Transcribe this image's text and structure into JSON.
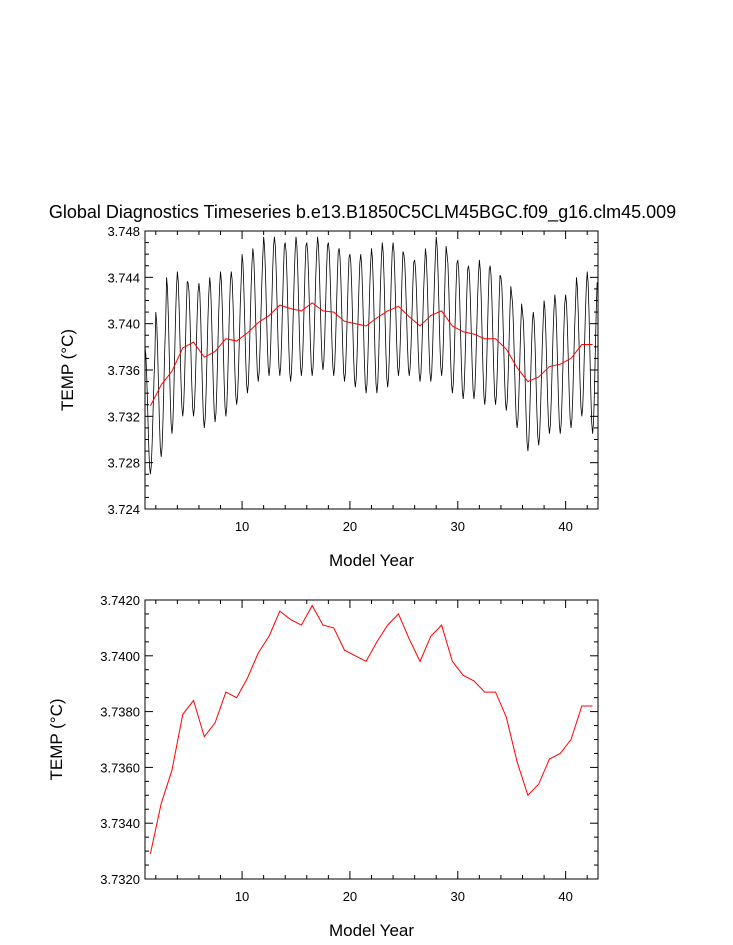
{
  "chart_data": [
    {
      "type": "line",
      "title": "Global Diagnostics Timeseries b.e13.B1850C5CLM45BGC.f09_g16.clm45.009",
      "xlabel": "Model Year",
      "ylabel": "TEMP (°C)",
      "xlim": [
        1,
        43
      ],
      "ylim": [
        3.724,
        3.748
      ],
      "xticks": [
        10,
        20,
        30,
        40
      ],
      "yticks": [
        3.724,
        3.728,
        3.732,
        3.736,
        3.74,
        3.744,
        3.748
      ],
      "ytick_labels": [
        "3.724",
        "3.728",
        "3.732",
        "3.736",
        "3.740",
        "3.744",
        "3.748"
      ],
      "grid": false,
      "series": [
        {
          "kind": "monthly",
          "color": "#000000",
          "x_start": 1,
          "x_step": 0.08333,
          "annual_peaks": [
            3.738,
            3.741,
            3.744,
            3.7445,
            3.7435,
            3.7435,
            3.744,
            3.7445,
            3.7445,
            3.746,
            3.7465,
            3.7475,
            3.7475,
            3.747,
            3.7475,
            3.747,
            3.7475,
            3.747,
            3.7465,
            3.746,
            3.746,
            3.7465,
            3.747,
            3.747,
            3.746,
            3.7455,
            3.7465,
            3.7475,
            3.746,
            3.7455,
            3.745,
            3.7455,
            3.745,
            3.744,
            3.7425,
            3.741,
            3.741,
            3.742,
            3.7425,
            3.7425,
            3.744,
            3.7445
          ],
          "annual_troughs": [
            3.727,
            3.7285,
            3.7305,
            3.732,
            3.732,
            3.731,
            3.7315,
            3.732,
            3.733,
            3.734,
            3.735,
            3.7355,
            3.7355,
            3.735,
            3.7355,
            3.7355,
            3.736,
            3.7355,
            3.735,
            3.7345,
            3.734,
            3.734,
            3.7345,
            3.7355,
            3.7355,
            3.735,
            3.735,
            3.7355,
            3.734,
            3.7335,
            3.7335,
            3.733,
            3.733,
            3.7325,
            3.731,
            3.729,
            3.7295,
            3.7305,
            3.7305,
            3.731,
            3.732,
            3.7305
          ]
        },
        {
          "kind": "annual",
          "color": "#ff0000",
          "x": [
            1.5,
            2.5,
            3.5,
            4.5,
            5.5,
            6.5,
            7.5,
            8.5,
            9.5,
            10.5,
            11.5,
            12.5,
            13.5,
            14.5,
            15.5,
            16.5,
            17.5,
            18.5,
            19.5,
            20.5,
            21.5,
            22.5,
            23.5,
            24.5,
            25.5,
            26.5,
            27.5,
            28.5,
            29.5,
            30.5,
            31.5,
            32.5,
            33.5,
            34.5,
            35.5,
            36.5,
            37.5,
            38.5,
            39.5,
            40.5,
            41.5,
            42.5
          ],
          "values": [
            3.7329,
            3.7347,
            3.7359,
            3.7379,
            3.7384,
            3.7371,
            3.7376,
            3.7387,
            3.7385,
            3.7392,
            3.7401,
            3.7407,
            3.7416,
            3.7413,
            3.7411,
            3.7418,
            3.7411,
            3.741,
            3.7402,
            3.74,
            3.7398,
            3.7405,
            3.7411,
            3.7415,
            3.7406,
            3.7398,
            3.7407,
            3.7411,
            3.7398,
            3.7393,
            3.7391,
            3.7387,
            3.7387,
            3.7378,
            3.7362,
            3.735,
            3.7354,
            3.7363,
            3.7365,
            3.737,
            3.7382,
            3.7382
          ]
        }
      ]
    },
    {
      "type": "line",
      "title": "",
      "xlabel": "Model Year",
      "ylabel": "TEMP (°C)",
      "xlim": [
        1,
        43
      ],
      "ylim": [
        3.732,
        3.742
      ],
      "xticks": [
        10,
        20,
        30,
        40
      ],
      "yticks": [
        3.732,
        3.734,
        3.736,
        3.738,
        3.74,
        3.742
      ],
      "ytick_labels": [
        "3.7320",
        "3.7340",
        "3.7360",
        "3.7380",
        "3.7400",
        "3.7420"
      ],
      "grid": false,
      "series": [
        {
          "kind": "annual",
          "color": "#ff0000",
          "x": [
            1.5,
            2.5,
            3.5,
            4.5,
            5.5,
            6.5,
            7.5,
            8.5,
            9.5,
            10.5,
            11.5,
            12.5,
            13.5,
            14.5,
            15.5,
            16.5,
            17.5,
            18.5,
            19.5,
            20.5,
            21.5,
            22.5,
            23.5,
            24.5,
            25.5,
            26.5,
            27.5,
            28.5,
            29.5,
            30.5,
            31.5,
            32.5,
            33.5,
            34.5,
            35.5,
            36.5,
            37.5,
            38.5,
            39.5,
            40.5,
            41.5,
            42.5
          ],
          "values": [
            3.7329,
            3.7347,
            3.7359,
            3.7379,
            3.7384,
            3.7371,
            3.7376,
            3.7387,
            3.7385,
            3.7392,
            3.7401,
            3.7407,
            3.7416,
            3.7413,
            3.7411,
            3.7418,
            3.7411,
            3.741,
            3.7402,
            3.74,
            3.7398,
            3.7405,
            3.7411,
            3.7415,
            3.7406,
            3.7398,
            3.7407,
            3.7411,
            3.7398,
            3.7393,
            3.7391,
            3.7387,
            3.7387,
            3.7378,
            3.7362,
            3.735,
            3.7354,
            3.7363,
            3.7365,
            3.737,
            3.7382,
            3.7382
          ]
        }
      ]
    }
  ]
}
